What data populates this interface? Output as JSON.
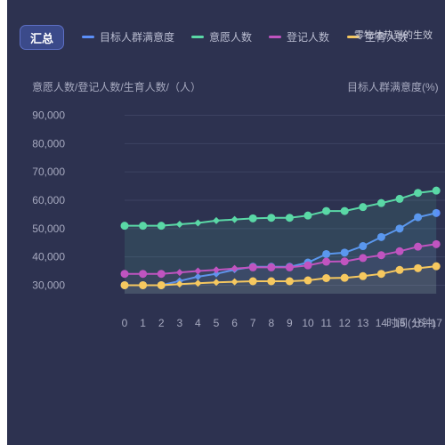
{
  "tab": {
    "label": "汇总"
  },
  "overlay": {
    "text": "零物体热到的生效"
  },
  "colors": {
    "panel": "#2d3250",
    "grid": "#3d4262"
  },
  "chart_data": {
    "type": "line",
    "left_axis_title": "意愿人数/登记人数/生育人数/（人）",
    "right_axis_title": "目标人群满意度(%)",
    "xlabel": "时间(分钟)",
    "x": [
      0,
      1,
      2,
      3,
      4,
      5,
      6,
      7,
      8,
      9,
      10,
      11,
      12,
      13,
      14,
      15,
      16,
      17
    ],
    "x_tick_labels": [
      "0",
      "1",
      "2",
      "3",
      "4",
      "5",
      "6",
      "7",
      "8",
      "9",
      "10",
      "11",
      "12",
      "13",
      "14",
      "15",
      "16",
      "17"
    ],
    "y_ticks": [
      30000,
      40000,
      50000,
      60000,
      70000,
      80000,
      90000
    ],
    "y_tick_labels": [
      "30,000",
      "40,000",
      "50,000",
      "60,000",
      "70,000",
      "80,000",
      "90,000"
    ],
    "ylim": [
      27000,
      93000
    ],
    "grid": true,
    "legend_position": "top",
    "series": [
      {
        "name": "目标人群满意度",
        "color": "#5b8ff9",
        "values": [
          30000,
          30000,
          30000,
          31500,
          33000,
          34000,
          35500,
          36500,
          36500,
          36500,
          38000,
          41000,
          41500,
          43800,
          47000,
          50000,
          54000,
          55500
        ]
      },
      {
        "name": "意愿人数",
        "color": "#5ad8a6",
        "values": [
          51000,
          51000,
          51000,
          51500,
          52000,
          52800,
          53200,
          53600,
          53800,
          53800,
          54600,
          56200,
          56200,
          57600,
          59000,
          60500,
          62600,
          63400
        ]
      },
      {
        "name": "登记人数",
        "color": "#c054c0",
        "values": [
          34000,
          34000,
          34000,
          34500,
          35000,
          35400,
          35900,
          36300,
          36300,
          36300,
          37000,
          38300,
          38400,
          39600,
          40600,
          42000,
          43600,
          44500
        ]
      },
      {
        "name": "生育人数",
        "color": "#f6c85f",
        "values": [
          30000,
          30000,
          30000,
          30400,
          30700,
          31000,
          31200,
          31400,
          31400,
          31400,
          31700,
          32500,
          32600,
          33200,
          34000,
          35400,
          36000,
          36700
        ]
      }
    ]
  }
}
